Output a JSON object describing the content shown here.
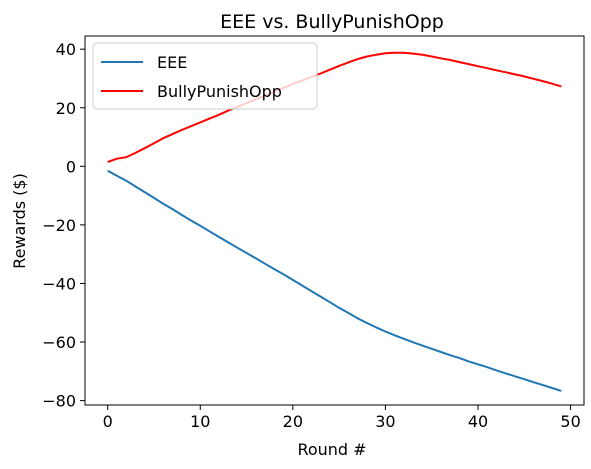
{
  "chart_data": {
    "type": "line",
    "title": "EEE vs. BullyPunishOpp",
    "xlabel": "Round #",
    "ylabel": "Rewards ($)",
    "xlim": [
      -2.45,
      51.45
    ],
    "ylim": [
      -81.5,
      44.5
    ],
    "xticks": [
      0,
      10,
      20,
      30,
      40,
      50
    ],
    "xtick_labels": [
      "0",
      "10",
      "20",
      "30",
      "40",
      "50"
    ],
    "yticks": [
      -80,
      -60,
      -40,
      -20,
      0,
      20,
      40
    ],
    "ytick_labels": [
      "−80",
      "−60",
      "−40",
      "−20",
      "0",
      "20",
      "40"
    ],
    "grid": false,
    "legend_position": "top-left",
    "series": [
      {
        "name": "EEE",
        "color": "#1f77b4",
        "x": [
          0,
          1,
          2,
          3,
          4,
          5,
          6,
          7,
          8,
          9,
          10,
          11,
          12,
          13,
          14,
          15,
          16,
          17,
          18,
          19,
          20,
          21,
          22,
          23,
          24,
          25,
          26,
          27,
          28,
          29,
          30,
          31,
          32,
          33,
          34,
          35,
          36,
          37,
          38,
          39,
          40,
          41,
          42,
          43,
          44,
          45,
          46,
          47,
          48,
          49
        ],
        "y": [
          -1.5,
          -3.2,
          -4.9,
          -6.9,
          -8.8,
          -10.8,
          -12.8,
          -14.6,
          -16.6,
          -18.5,
          -20.3,
          -22.2,
          -24.1,
          -25.9,
          -27.8,
          -29.6,
          -31.4,
          -33.3,
          -35.1,
          -36.9,
          -38.8,
          -40.7,
          -42.6,
          -44.5,
          -46.4,
          -48.3,
          -50.1,
          -51.9,
          -53.5,
          -55.0,
          -56.4,
          -57.7,
          -58.9,
          -60.1,
          -61.2,
          -62.3,
          -63.4,
          -64.5,
          -65.5,
          -66.6,
          -67.6,
          -68.6,
          -69.7,
          -70.7,
          -71.7,
          -72.7,
          -73.7,
          -74.7,
          -75.7,
          -76.7
        ]
      },
      {
        "name": "BullyPunishOpp",
        "color": "#ff0000",
        "x": [
          0,
          1,
          2,
          3,
          4,
          5,
          6,
          7,
          8,
          9,
          10,
          11,
          12,
          13,
          14,
          15,
          16,
          17,
          18,
          19,
          20,
          21,
          22,
          23,
          24,
          25,
          26,
          27,
          28,
          29,
          30,
          31,
          32,
          33,
          34,
          35,
          36,
          37,
          38,
          39,
          40,
          41,
          42,
          43,
          44,
          45,
          46,
          47,
          48,
          49
        ],
        "y": [
          1.5,
          2.6,
          3.1,
          4.6,
          6.2,
          7.9,
          9.6,
          11.0,
          12.4,
          13.7,
          15.0,
          16.3,
          17.6,
          19.0,
          20.3,
          21.6,
          22.9,
          24.2,
          25.5,
          26.8,
          28.1,
          29.3,
          30.5,
          31.7,
          33.0,
          34.3,
          35.5,
          36.6,
          37.5,
          38.1,
          38.6,
          38.8,
          38.8,
          38.5,
          38.1,
          37.5,
          36.9,
          36.3,
          35.6,
          34.9,
          34.2,
          33.5,
          32.8,
          32.1,
          31.4,
          30.7,
          29.9,
          29.1,
          28.2,
          27.3
        ]
      }
    ]
  }
}
